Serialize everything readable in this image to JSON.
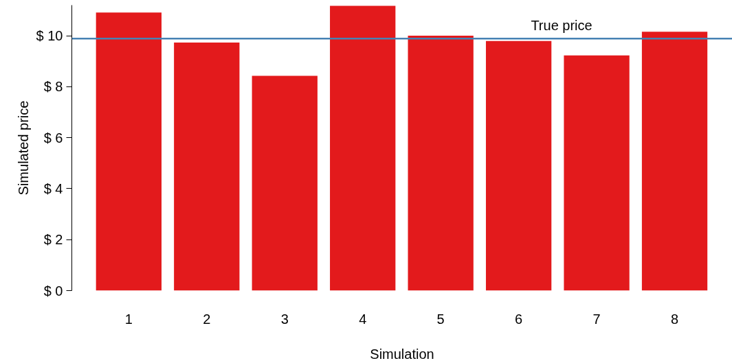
{
  "chart_data": {
    "type": "bar",
    "xlabel": "Simulation",
    "ylabel": "Simulated price",
    "categories": [
      "1",
      "2",
      "3",
      "4",
      "5",
      "6",
      "7",
      "8"
    ],
    "values": [
      10.91,
      9.73,
      8.43,
      11.17,
      10.0,
      9.79,
      9.23,
      10.16
    ],
    "color": "#e31a1c",
    "ylim": [
      0,
      11.2
    ],
    "yticks": [
      {
        "value": 0,
        "label": "$ 0"
      },
      {
        "value": 2,
        "label": "$ 2"
      },
      {
        "value": 4,
        "label": "$ 4"
      },
      {
        "value": 6,
        "label": "$ 6"
      },
      {
        "value": 8,
        "label": "$ 8"
      },
      {
        "value": 10,
        "label": "$ 10"
      }
    ],
    "ref_lines": [
      {
        "axis": "y",
        "value": 9.89,
        "label": "True price",
        "color": "#4682b4"
      }
    ],
    "grid": false
  }
}
